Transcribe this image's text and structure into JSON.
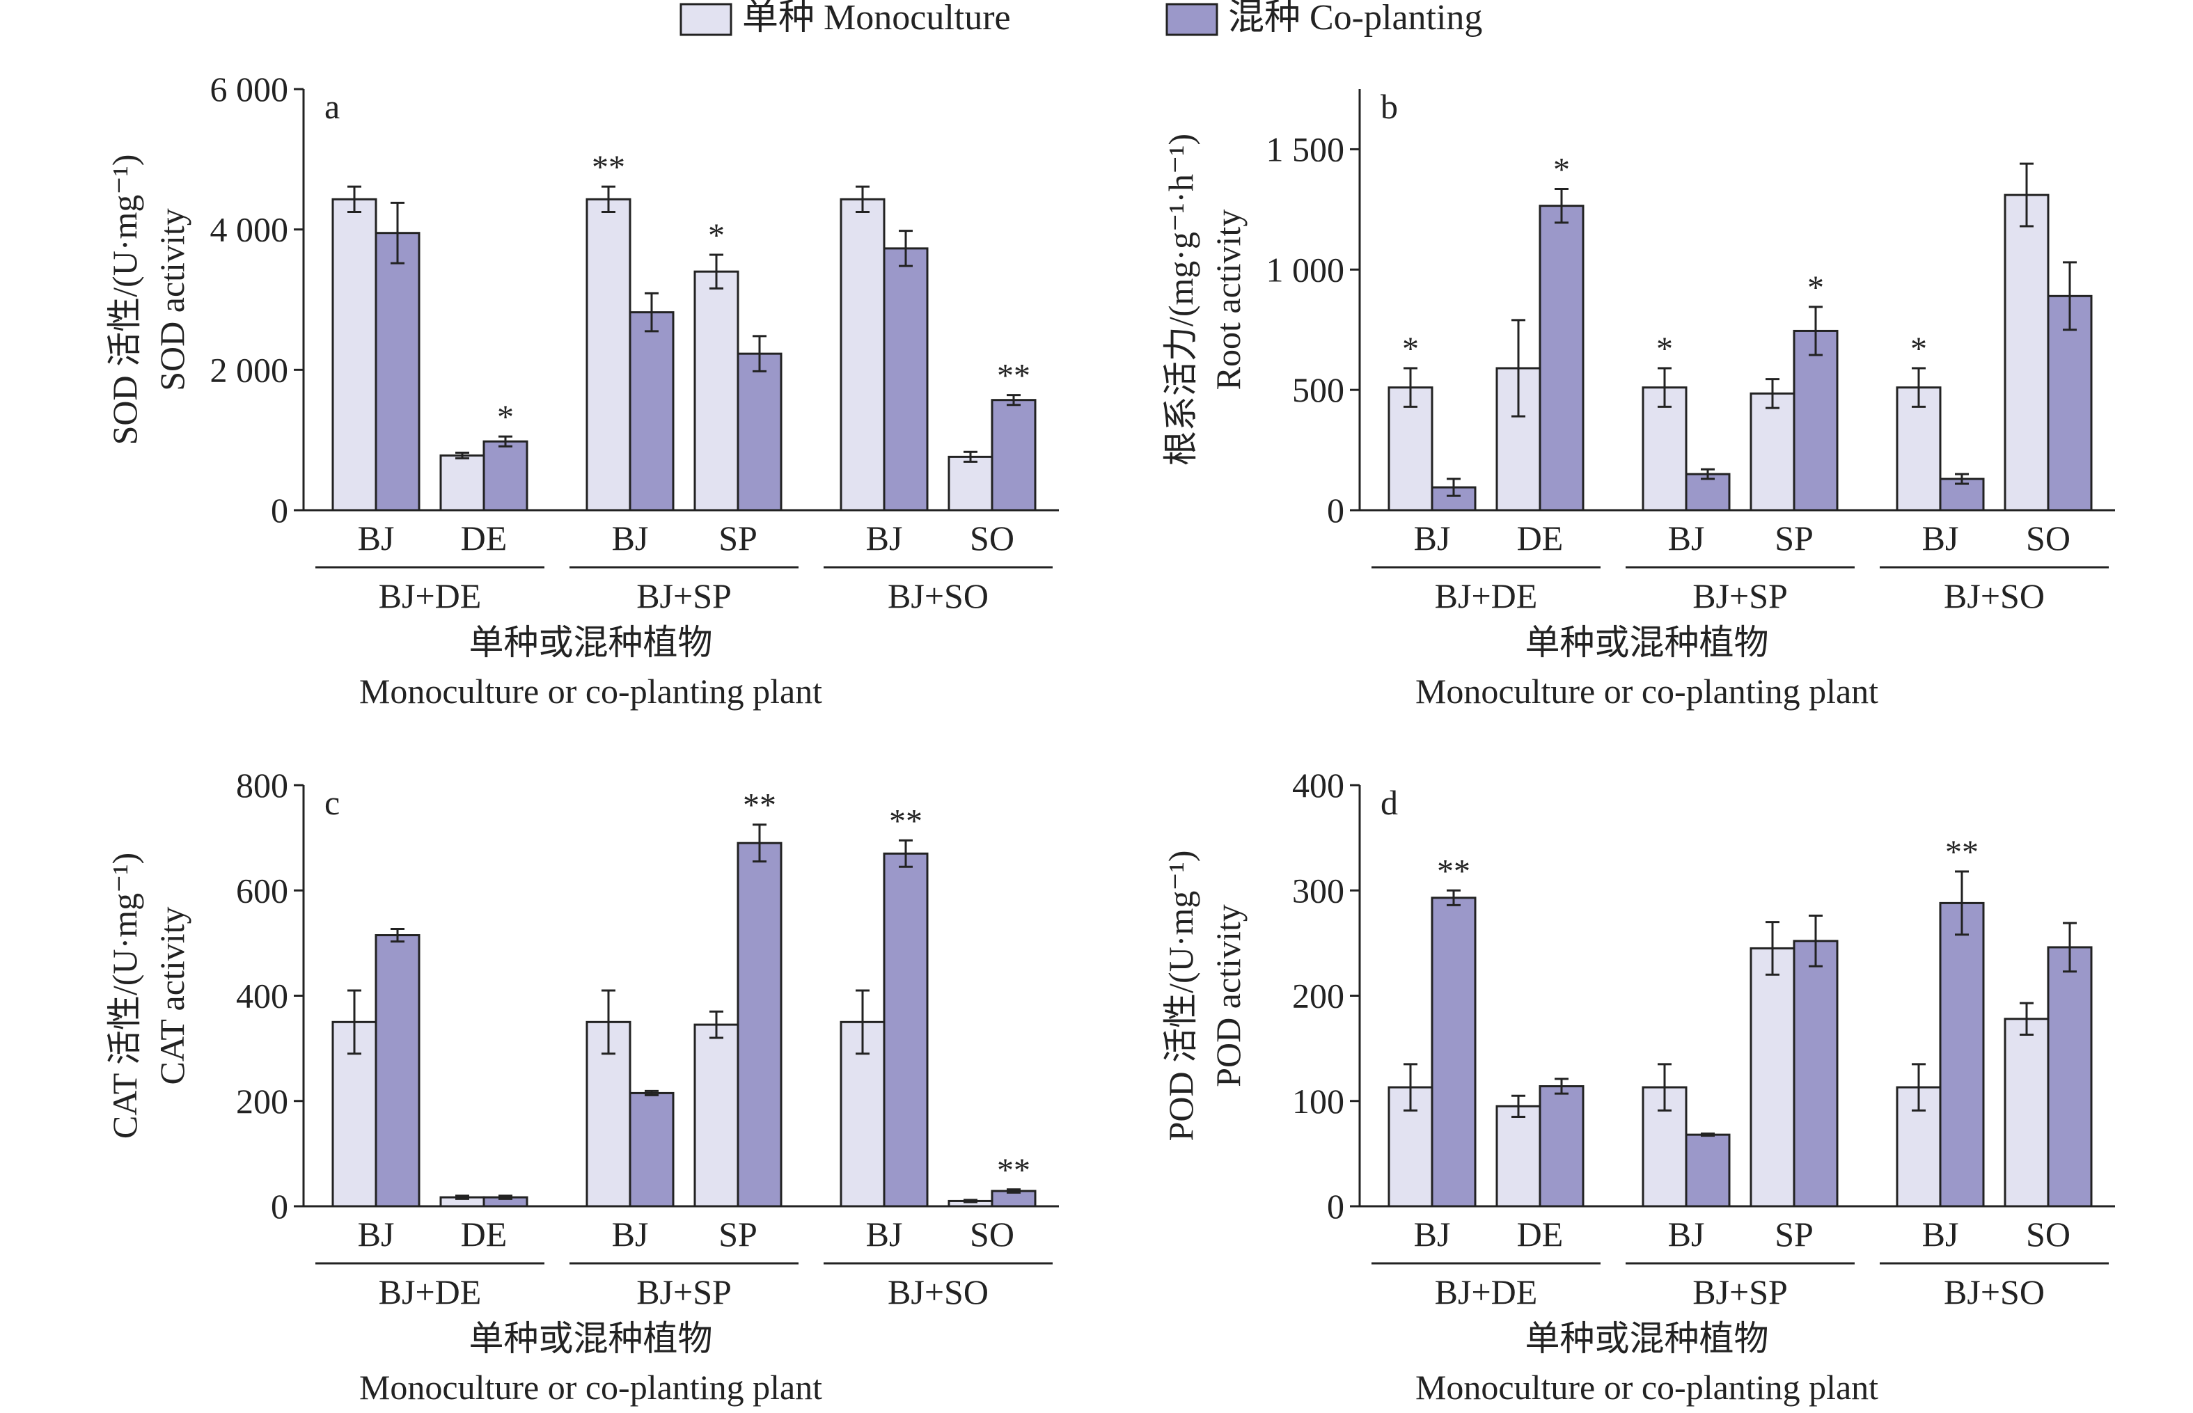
{
  "legend": [
    {
      "label": "单种 Monoculture",
      "color": "#e2e2f1"
    },
    {
      "label": "混种 Co-planting",
      "color": "#9b98c9"
    }
  ],
  "x_title_zh": "单种或混种植物",
  "x_title_en": "Monoculture or co-planting plant",
  "chart_data": [
    {
      "type": "bar",
      "panel": "a",
      "ylabel_zh": "SOD 活性/(U·mg⁻¹)",
      "ylabel_en": "SOD activity",
      "ylim": [
        0,
        6000
      ],
      "yticks": [
        0,
        2000,
        4000,
        6000
      ],
      "ytick_labels": [
        "0",
        "2 000",
        "4 000",
        "6 000"
      ],
      "groups": [
        {
          "name": "BJ+DE",
          "bars": [
            {
              "plant": "BJ",
              "mono": 4430,
              "mono_err": 180,
              "co": 3950,
              "co_err": 430,
              "mono_sig": "",
              "co_sig": ""
            },
            {
              "plant": "DE",
              "mono": 780,
              "mono_err": 40,
              "co": 980,
              "co_err": 70,
              "mono_sig": "",
              "co_sig": "*"
            }
          ]
        },
        {
          "name": "BJ+SP",
          "bars": [
            {
              "plant": "BJ",
              "mono": 4430,
              "mono_err": 180,
              "co": 2820,
              "co_err": 270,
              "mono_sig": "**",
              "co_sig": ""
            },
            {
              "plant": "SP",
              "mono": 3400,
              "mono_err": 240,
              "co": 2230,
              "co_err": 250,
              "mono_sig": "*",
              "co_sig": ""
            }
          ]
        },
        {
          "name": "BJ+SO",
          "bars": [
            {
              "plant": "BJ",
              "mono": 4430,
              "mono_err": 180,
              "co": 3730,
              "co_err": 250,
              "mono_sig": "",
              "co_sig": ""
            },
            {
              "plant": "SO",
              "mono": 760,
              "mono_err": 70,
              "co": 1570,
              "co_err": 70,
              "mono_sig": "",
              "co_sig": "**"
            }
          ]
        }
      ]
    },
    {
      "type": "bar",
      "panel": "b",
      "ylabel_zh": "根系活力/(mg·g⁻¹·h⁻¹)",
      "ylabel_en": "Root activity",
      "ylim": [
        0,
        1750
      ],
      "yticks": [
        0,
        500,
        1000,
        1500
      ],
      "ytick_labels": [
        "0",
        "500",
        "1 000",
        "1 500"
      ],
      "groups": [
        {
          "name": "BJ+DE",
          "bars": [
            {
              "plant": "BJ",
              "mono": 510,
              "mono_err": 80,
              "co": 95,
              "co_err": 35,
              "mono_sig": "*",
              "co_sig": ""
            },
            {
              "plant": "DE",
              "mono": 590,
              "mono_err": 200,
              "co": 1265,
              "co_err": 70,
              "mono_sig": "",
              "co_sig": "*"
            }
          ]
        },
        {
          "name": "BJ+SP",
          "bars": [
            {
              "plant": "BJ",
              "mono": 510,
              "mono_err": 80,
              "co": 150,
              "co_err": 20,
              "mono_sig": "*",
              "co_sig": ""
            },
            {
              "plant": "SP",
              "mono": 485,
              "mono_err": 60,
              "co": 745,
              "co_err": 100,
              "mono_sig": "",
              "co_sig": "*"
            }
          ]
        },
        {
          "name": "BJ+SO",
          "bars": [
            {
              "plant": "BJ",
              "mono": 510,
              "mono_err": 80,
              "co": 130,
              "co_err": 20,
              "mono_sig": "*",
              "co_sig": ""
            },
            {
              "plant": "SO",
              "mono": 1310,
              "mono_err": 130,
              "co": 890,
              "co_err": 140,
              "mono_sig": "",
              "co_sig": ""
            }
          ]
        }
      ]
    },
    {
      "type": "bar",
      "panel": "c",
      "ylabel_zh": "CAT 活性/(U·mg⁻¹)",
      "ylabel_en": "CAT activity",
      "ylim": [
        0,
        800
      ],
      "yticks": [
        0,
        200,
        400,
        600,
        800
      ],
      "ytick_labels": [
        "0",
        "200",
        "400",
        "600",
        "800"
      ],
      "groups": [
        {
          "name": "BJ+DE",
          "bars": [
            {
              "plant": "BJ",
              "mono": 350,
              "mono_err": 60,
              "co": 515,
              "co_err": 12,
              "mono_sig": "",
              "co_sig": ""
            },
            {
              "plant": "DE",
              "mono": 17,
              "mono_err": 3,
              "co": 17,
              "co_err": 3,
              "mono_sig": "",
              "co_sig": ""
            }
          ]
        },
        {
          "name": "BJ+SP",
          "bars": [
            {
              "plant": "BJ",
              "mono": 350,
              "mono_err": 60,
              "co": 215,
              "co_err": 4,
              "mono_sig": "",
              "co_sig": ""
            },
            {
              "plant": "SP",
              "mono": 345,
              "mono_err": 25,
              "co": 690,
              "co_err": 35,
              "mono_sig": "",
              "co_sig": "**"
            }
          ]
        },
        {
          "name": "BJ+SO",
          "bars": [
            {
              "plant": "BJ",
              "mono": 350,
              "mono_err": 60,
              "co": 670,
              "co_err": 25,
              "mono_sig": "",
              "co_sig": "**"
            },
            {
              "plant": "SO",
              "mono": 10,
              "mono_err": 2,
              "co": 29,
              "co_err": 3,
              "mono_sig": "",
              "co_sig": "**"
            }
          ]
        }
      ]
    },
    {
      "type": "bar",
      "panel": "d",
      "ylabel_zh": "POD 活性/(U·mg⁻¹)",
      "ylabel_en": "POD activity",
      "ylim": [
        0,
        400
      ],
      "yticks": [
        0,
        100,
        200,
        300,
        400
      ],
      "ytick_labels": [
        "0",
        "100",
        "200",
        "300",
        "400"
      ],
      "groups": [
        {
          "name": "BJ+DE",
          "bars": [
            {
              "plant": "BJ",
              "mono": 113,
              "mono_err": 22,
              "co": 293,
              "co_err": 7,
              "mono_sig": "",
              "co_sig": "**"
            },
            {
              "plant": "DE",
              "mono": 95,
              "mono_err": 10,
              "co": 114,
              "co_err": 7,
              "mono_sig": "",
              "co_sig": ""
            }
          ]
        },
        {
          "name": "BJ+SP",
          "bars": [
            {
              "plant": "BJ",
              "mono": 113,
              "mono_err": 22,
              "co": 68,
              "co_err": 1,
              "mono_sig": "",
              "co_sig": ""
            },
            {
              "plant": "SP",
              "mono": 245,
              "mono_err": 25,
              "co": 252,
              "co_err": 24,
              "mono_sig": "",
              "co_sig": ""
            }
          ]
        },
        {
          "name": "BJ+SO",
          "bars": [
            {
              "plant": "BJ",
              "mono": 113,
              "mono_err": 22,
              "co": 288,
              "co_err": 30,
              "mono_sig": "",
              "co_sig": "**"
            },
            {
              "plant": "SO",
              "mono": 178,
              "mono_err": 15,
              "co": 246,
              "co_err": 23,
              "mono_sig": "",
              "co_sig": ""
            }
          ]
        }
      ]
    }
  ]
}
